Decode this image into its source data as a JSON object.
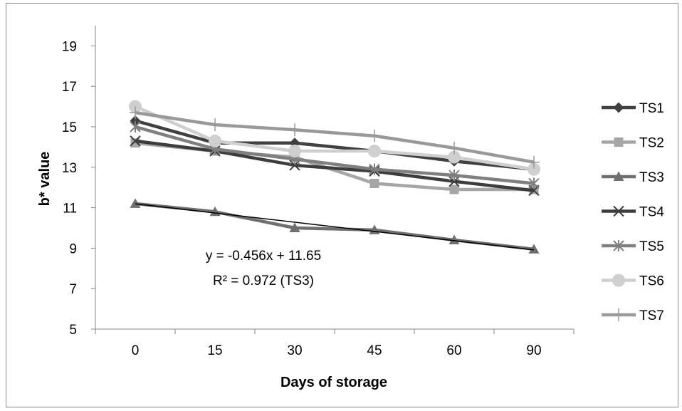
{
  "chart_data": {
    "type": "line",
    "title": "",
    "xlabel": "Days of storage",
    "ylabel": "b* value",
    "categories": [
      "0",
      "15",
      "30",
      "45",
      "60",
      "90"
    ],
    "ylim": [
      5,
      20
    ],
    "yticks": [
      5,
      7,
      9,
      11,
      13,
      15,
      17,
      19
    ],
    "grid": false,
    "legend_position": "right",
    "series": [
      {
        "name": "TS1",
        "values": [
          15.3,
          14.2,
          14.2,
          13.8,
          13.3,
          12.9
        ],
        "color": "#404040",
        "marker": "diamond"
      },
      {
        "name": "TS2",
        "values": [
          14.2,
          13.8,
          13.5,
          12.2,
          11.9,
          11.9
        ],
        "color": "#a6a6a6",
        "marker": "square"
      },
      {
        "name": "TS3",
        "values": [
          11.2,
          10.8,
          10.0,
          9.9,
          9.4,
          8.95
        ],
        "color": "#6f6f6f",
        "marker": "triangle"
      },
      {
        "name": "TS4",
        "values": [
          14.3,
          13.8,
          13.1,
          12.8,
          12.3,
          11.85
        ],
        "color": "#3d3d3d",
        "marker": "x"
      },
      {
        "name": "TS5",
        "values": [
          15.0,
          13.9,
          13.4,
          12.9,
          12.6,
          12.2
        ],
        "color": "#7f7f7f",
        "marker": "star"
      },
      {
        "name": "TS6",
        "values": [
          16.0,
          14.3,
          13.8,
          13.8,
          13.5,
          12.9
        ],
        "color": "#cfcfcf",
        "marker": "circle"
      },
      {
        "name": "TS7",
        "values": [
          15.7,
          15.1,
          14.85,
          14.55,
          13.95,
          13.25
        ],
        "color": "#999999",
        "marker": "plus"
      }
    ],
    "trendline": {
      "series": "TS3",
      "slope": -0.456,
      "intercept": 11.65,
      "color": "#000000"
    },
    "annotations": [
      "y = -0.456x + 11.65",
      "R² = 0.972 (TS3)"
    ]
  }
}
